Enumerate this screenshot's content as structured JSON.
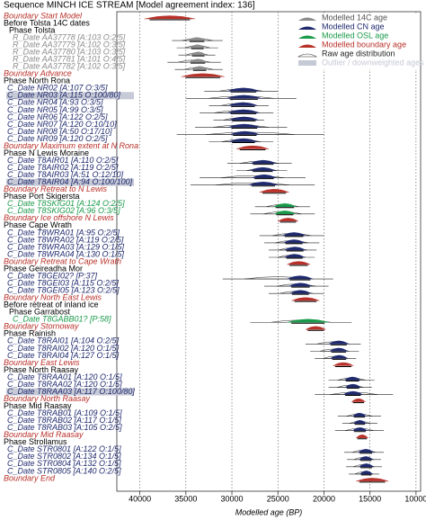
{
  "chart_data": {
    "type": "multiplot",
    "title": "Sequence MINCH ICE STREAM [Model agreement index: 136]",
    "x_label": "Modelled age (BP)",
    "xlim": [
      42500,
      9500
    ],
    "xticks": [
      40000,
      35000,
      30000,
      25000,
      20000,
      15000,
      10000
    ],
    "grid": true,
    "legend_position": "upper right",
    "legend": [
      {
        "name": "Modelled 14C age",
        "color": "#8c8c8c"
      },
      {
        "name": "Modelled CN age",
        "color": "#1f2a6e"
      },
      {
        "name": "Modelled OSL age",
        "color": "#1a9a4a"
      },
      {
        "name": "Modelled boundary age",
        "color": "#b8312a"
      },
      {
        "name": "Raw age distribution",
        "color": "#222222"
      },
      {
        "name": "Outlier / downweighted ages",
        "color": "#c6c9d6"
      }
    ],
    "rows": [
      {
        "label": "Boundary Start Model",
        "kind": "boundary",
        "series": 3,
        "modelled": [
          39500,
          34000
        ]
      },
      {
        "label": "Before Tolsta 14C dates",
        "kind": "group"
      },
      {
        "label": "Phase Tolsta",
        "kind": "phase"
      },
      {
        "label": "R_Date AA37778 [A:103 O:2/5]",
        "kind": "date",
        "series": 0,
        "modelled": [
          34800,
          32800
        ],
        "raw": [
          36500,
          31000
        ]
      },
      {
        "label": "R_Date AA37779 [A:102 O:3/5]",
        "kind": "date",
        "series": 0,
        "modelled": [
          34600,
          32900
        ],
        "raw": [
          36000,
          31500
        ]
      },
      {
        "label": "R_Date AA37780 [A:103 O:3/5]",
        "kind": "date",
        "series": 0,
        "modelled": [
          34500,
          32800
        ],
        "raw": [
          35800,
          31800
        ]
      },
      {
        "label": "R_Date AA37781 [A:101 O:4/5]",
        "kind": "date",
        "series": 0,
        "modelled": [
          34700,
          32700
        ],
        "raw": [
          37000,
          31200
        ]
      },
      {
        "label": "R_Date AA37782 [A:102 O:3/5]",
        "kind": "date",
        "series": 0,
        "modelled": [
          34400,
          32600
        ],
        "raw": [
          36200,
          31000
        ]
      },
      {
        "label": "Boundary Advance",
        "kind": "boundary",
        "series": 3,
        "modelled": [
          35500,
          30800
        ]
      },
      {
        "label": "Phase North Rona",
        "kind": "phase"
      },
      {
        "label": "C_Date NR02 [A:107 O:3/5]",
        "kind": "date",
        "series": 1,
        "modelled": [
          30500,
          27000
        ],
        "raw": [
          33000,
          25000
        ]
      },
      {
        "label": "C_Date NR03 [A:115 O:100/80]",
        "kind": "date",
        "series": 1,
        "modelled": [
          30600,
          26800
        ],
        "raw": [
          35000,
          23000
        ],
        "outlier": true
      },
      {
        "label": "C_Date NR04 [A:93 O:3/5]",
        "kind": "date",
        "series": 1,
        "modelled": [
          30400,
          27200
        ],
        "raw": [
          32500,
          26000
        ]
      },
      {
        "label": "C_Date NR05 [A:99 O:3/5]",
        "kind": "date",
        "series": 1,
        "modelled": [
          30500,
          27000
        ],
        "raw": [
          33500,
          25500
        ]
      },
      {
        "label": "C_Date NR06 [A:122 O:2/5]",
        "kind": "date",
        "series": 1,
        "modelled": [
          30300,
          27100
        ],
        "raw": [
          32000,
          26500
        ]
      },
      {
        "label": "C_Date NR07 [A:120 O:10/10]",
        "kind": "date",
        "series": 1,
        "modelled": [
          30400,
          26900
        ],
        "raw": [
          34000,
          24000
        ]
      },
      {
        "label": "C_Date NR08 [A:50 O:17/10]",
        "kind": "date",
        "series": 1,
        "modelled": [
          30200,
          27000
        ],
        "raw": [
          36000,
          20000
        ]
      },
      {
        "label": "C_Date NR09 [A:120 O:2/5]",
        "kind": "date",
        "series": 1,
        "modelled": [
          30300,
          27200
        ],
        "raw": [
          32500,
          25500
        ]
      },
      {
        "label": "Boundary Maximum extent at N Rona",
        "kind": "boundary",
        "series": 3,
        "modelled": [
          29500,
          26000
        ]
      },
      {
        "label": "Phase N Lewis Moraine",
        "kind": "phase"
      },
      {
        "label": "C_Date T8AIR01 [A:110 O:2/5]",
        "kind": "date",
        "series": 1,
        "modelled": [
          28000,
          25200
        ],
        "raw": [
          30500,
          23500
        ]
      },
      {
        "label": "C_Date T8AIR02 [A:119 O:2/5]",
        "kind": "date",
        "series": 1,
        "modelled": [
          28000,
          25300
        ],
        "raw": [
          29500,
          24000
        ]
      },
      {
        "label": "C_Date T8AIR03 [A:51 O:12/10]",
        "kind": "date",
        "series": 1,
        "modelled": [
          27800,
          25200
        ],
        "raw": [
          33500,
          22000
        ]
      },
      {
        "label": "C_Date T8AIR04 [A:94 O:100/100]",
        "kind": "date",
        "series": 1,
        "modelled": [
          28200,
          25000
        ],
        "raw": [
          34500,
          21000
        ],
        "outlier": true
      },
      {
        "label": "Boundary Retreat to N Lewis",
        "kind": "boundary",
        "series": 3,
        "modelled": [
          27000,
          23800
        ]
      },
      {
        "label": "Phase Port Skigersta",
        "kind": "phase"
      },
      {
        "label": "C_Date T8SKIG01 [A:124 O:2/5]",
        "kind": "date",
        "series": 2,
        "modelled": [
          25500,
          23000
        ],
        "raw": [
          27500,
          21500
        ]
      },
      {
        "label": "C_Date T8SKIG02 [A:96 O:3/5]",
        "kind": "date",
        "series": 2,
        "modelled": [
          25400,
          23100
        ],
        "raw": [
          28000,
          21000
        ]
      },
      {
        "label": "Boundary Ice offshore N Lewis",
        "kind": "boundary",
        "series": 3,
        "modelled": [
          25000,
          22800
        ]
      },
      {
        "label": "Phase Cape Wrath",
        "kind": "phase"
      },
      {
        "label": "C_Date T8WRA01 [A:95 O:2/5]",
        "kind": "date",
        "series": 1,
        "modelled": [
          24500,
          22000
        ],
        "raw": [
          27000,
          20000
        ]
      },
      {
        "label": "C_Date T8WRA02 [A:119 O:2/5]",
        "kind": "date",
        "series": 1,
        "modelled": [
          24400,
          22100
        ],
        "raw": [
          26500,
          20500
        ]
      },
      {
        "label": "C_Date T8WRA03 [A:129 O:1/5]",
        "kind": "date",
        "series": 1,
        "modelled": [
          24300,
          22000
        ],
        "raw": [
          26000,
          20800
        ]
      },
      {
        "label": "C_Date T8WRA04 [A:130 O:1/5]",
        "kind": "date",
        "series": 1,
        "modelled": [
          24300,
          22100
        ],
        "raw": [
          26000,
          21000
        ]
      },
      {
        "label": "Boundary Retreat to Cape Wrath",
        "kind": "boundary",
        "series": 3,
        "modelled": [
          24000,
          21500
        ]
      },
      {
        "label": "Phase Geireadha Mor",
        "kind": "phase"
      },
      {
        "label": "C_Date T8GEI02? [P:37]",
        "kind": "date",
        "series": 1,
        "modelled": [
          24000,
          21200
        ],
        "raw": [
          31000,
          19000
        ]
      },
      {
        "label": "C_Date T8GEI03 [A:115 O:2/5]",
        "kind": "date",
        "series": 1,
        "modelled": [
          23800,
          21300
        ],
        "raw": [
          26500,
          19500
        ]
      },
      {
        "label": "C_Date T8GEI05 [A:123 O:2/5]",
        "kind": "date",
        "series": 1,
        "modelled": [
          23700,
          21400
        ],
        "raw": [
          26000,
          20000
        ]
      },
      {
        "label": "Boundary North East Lewis",
        "kind": "boundary",
        "series": 3,
        "modelled": [
          23500,
          20500
        ]
      },
      {
        "label": "Before retreat of inland ice",
        "kind": "group"
      },
      {
        "label": "Phase Garrabost",
        "kind": "phase"
      },
      {
        "label": "C_Date T8GABB01? [P:58]",
        "kind": "date",
        "series": 2,
        "modelled": [
          24000,
          19500
        ],
        "raw": [
          28000,
          17000
        ]
      },
      {
        "label": "Boundary Stornoway",
        "kind": "boundary",
        "series": 3,
        "modelled": [
          22000,
          19800
        ]
      },
      {
        "label": "Phase Rainish",
        "kind": "phase"
      },
      {
        "label": "C_Date T8RAI01 [A:104 O:2/5]",
        "kind": "date",
        "series": 1,
        "modelled": [
          19500,
          17300
        ],
        "raw": [
          22000,
          16000
        ]
      },
      {
        "label": "C_Date T8RAI02 [A:120 O:1/5]",
        "kind": "date",
        "series": 1,
        "modelled": [
          19400,
          17400
        ],
        "raw": [
          21500,
          16200
        ]
      },
      {
        "label": "C_Date T8RAI04 [A:127 O:1/5]",
        "kind": "date",
        "series": 1,
        "modelled": [
          19300,
          17400
        ],
        "raw": [
          21000,
          16500
        ]
      },
      {
        "label": "Boundary East Lewis",
        "kind": "boundary",
        "series": 3,
        "modelled": [
          19000,
          16800
        ]
      },
      {
        "label": "Phase North Raasay",
        "kind": "phase"
      },
      {
        "label": "C_Date T8RAA01 [A:120 O:1/5]",
        "kind": "date",
        "series": 1,
        "modelled": [
          17800,
          16000
        ],
        "raw": [
          19500,
          14500
        ]
      },
      {
        "label": "C_Date T8RAA02 [A:120 O:1/5]",
        "kind": "date",
        "series": 1,
        "modelled": [
          17700,
          16000
        ],
        "raw": [
          19500,
          14800
        ]
      },
      {
        "label": "C_Date T8RAA03 [A:117 O:100/80]",
        "kind": "date",
        "series": 1,
        "modelled": [
          17900,
          15800
        ],
        "raw": [
          21000,
          12500
        ],
        "outlier": true
      },
      {
        "label": "Boundary North Raasay",
        "kind": "boundary",
        "series": 3,
        "modelled": [
          17000,
          15500
        ]
      },
      {
        "label": "Phase Mid Raasay",
        "kind": "phase"
      },
      {
        "label": "C_Date T8RAB01 [A:109 O:1/5]",
        "kind": "date",
        "series": 1,
        "modelled": [
          16900,
          15400
        ],
        "raw": [
          18500,
          13800
        ]
      },
      {
        "label": "C_Date T8RAB02 [A:117 O:1/5]",
        "kind": "date",
        "series": 1,
        "modelled": [
          16800,
          15400
        ],
        "raw": [
          18000,
          14200
        ]
      },
      {
        "label": "C_Date T8RAB03 [A:105 O:2/5]",
        "kind": "date",
        "series": 1,
        "modelled": [
          16900,
          15300
        ],
        "raw": [
          18800,
          13500
        ]
      },
      {
        "label": "Boundary Mid Raasay",
        "kind": "boundary",
        "series": 3,
        "modelled": [
          16500,
          15200
        ]
      },
      {
        "label": "Phase Strollamus",
        "kind": "phase"
      },
      {
        "label": "C_Date STR0801 [A:122 O:1/5]",
        "kind": "date",
        "series": 1,
        "modelled": [
          16300,
          14600
        ],
        "raw": [
          17800,
          13500
        ]
      },
      {
        "label": "C_Date STR0802 [A:134 O:1/5]",
        "kind": "date",
        "series": 1,
        "modelled": [
          16200,
          14700
        ],
        "raw": [
          17500,
          13800
        ]
      },
      {
        "label": "C_Date STR0804 [A:132 O:1/5]",
        "kind": "date",
        "series": 1,
        "modelled": [
          16200,
          14600
        ],
        "raw": [
          17600,
          13700
        ]
      },
      {
        "label": "C_Date STR0805 [A:140 O:2/5]",
        "kind": "date",
        "series": 1,
        "modelled": [
          16100,
          14700
        ],
        "raw": [
          17300,
          14000
        ]
      },
      {
        "label": "Boundary End",
        "kind": "boundary",
        "series": 3,
        "modelled": [
          16500,
          13000
        ]
      }
    ]
  }
}
